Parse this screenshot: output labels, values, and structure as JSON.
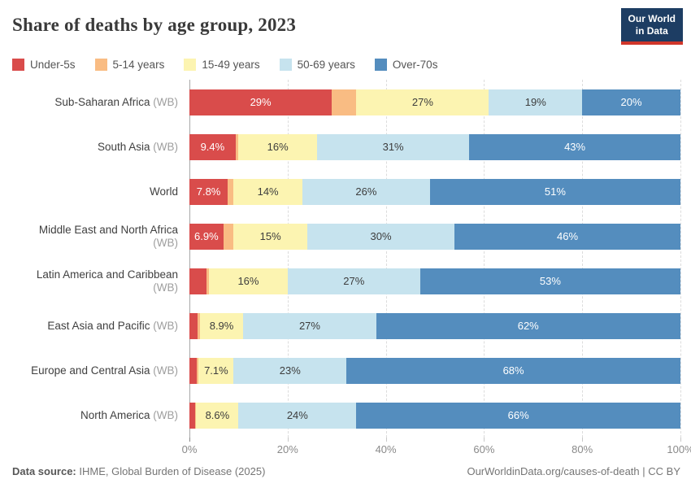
{
  "header": {
    "title": "Share of deaths by age group, 2023",
    "logo": {
      "line1": "Our World",
      "line2": "in Data"
    }
  },
  "footer": {
    "source_label": "Data source:",
    "source_value": " IHME, Global Burden of Disease (2025)",
    "url": "OurWorldinData.org/causes-of-death",
    "divider": " | ",
    "license": "CC BY"
  },
  "chart_data": {
    "type": "bar",
    "variant": "horizontal-stacked-100pct",
    "title": "Share of deaths by age group, 2023",
    "unit": "%",
    "xlim": [
      0,
      100
    ],
    "grid": true,
    "legend_position": "top",
    "x_ticks": [
      {
        "value": 0,
        "label": "0%"
      },
      {
        "value": 20,
        "label": "20%"
      },
      {
        "value": 40,
        "label": "40%"
      },
      {
        "value": 60,
        "label": "60%"
      },
      {
        "value": 80,
        "label": "80%"
      },
      {
        "value": 100,
        "label": "100%"
      }
    ],
    "series": [
      {
        "name": "Under-5s",
        "color": "#d94c4b",
        "label_color": "#ffffff"
      },
      {
        "name": "5-14 years",
        "color": "#f9bc83",
        "label_color": "#3d3d3d"
      },
      {
        "name": "15-49 years",
        "color": "#fcf4b1",
        "label_color": "#3d3d3d"
      },
      {
        "name": "50-69 years",
        "color": "#c6e3ee",
        "label_color": "#3d3d3d"
      },
      {
        "name": "Over-70s",
        "color": "#548dbe",
        "label_color": "#ffffff"
      }
    ],
    "rows": [
      {
        "name": "Sub-Saharan Africa",
        "suffix": " (WB)",
        "values": [
          29,
          5,
          27,
          19,
          20
        ],
        "labels": [
          "29%",
          "",
          "27%",
          "19%",
          "20%"
        ]
      },
      {
        "name": "South Asia",
        "suffix": " (WB)",
        "values": [
          9.4,
          0.6,
          16,
          31,
          43
        ],
        "labels": [
          "9.4%",
          "",
          "16%",
          "31%",
          "43%"
        ]
      },
      {
        "name": "World",
        "suffix": "",
        "values": [
          7.8,
          1.2,
          14,
          26,
          51
        ],
        "labels": [
          "7.8%",
          "",
          "14%",
          "26%",
          "51%"
        ]
      },
      {
        "name": "Middle East and North Africa",
        "suffix": " (WB)",
        "values": [
          6.9,
          2.1,
          15,
          30,
          46
        ],
        "labels": [
          "6.9%",
          "",
          "15%",
          "30%",
          "46%"
        ]
      },
      {
        "name": "Latin America and Caribbean",
        "suffix": " (WB)",
        "values": [
          3.4,
          0.6,
          16,
          27,
          53
        ],
        "labels": [
          "",
          "",
          "16%",
          "27%",
          "53%"
        ]
      },
      {
        "name": "East Asia and Pacific",
        "suffix": " (WB)",
        "values": [
          1.6,
          0.5,
          8.9,
          27,
          62
        ],
        "labels": [
          "",
          "",
          "8.9%",
          "27%",
          "62%"
        ]
      },
      {
        "name": "Europe and Central Asia",
        "suffix": " (WB)",
        "values": [
          1.5,
          0.4,
          7.1,
          23,
          68
        ],
        "labels": [
          "",
          "",
          "7.1%",
          "23%",
          "68%"
        ]
      },
      {
        "name": "North America",
        "suffix": " (WB)",
        "values": [
          1.1,
          0.3,
          8.6,
          24,
          66
        ],
        "labels": [
          "",
          "",
          "8.6%",
          "24%",
          "66%"
        ]
      }
    ]
  }
}
